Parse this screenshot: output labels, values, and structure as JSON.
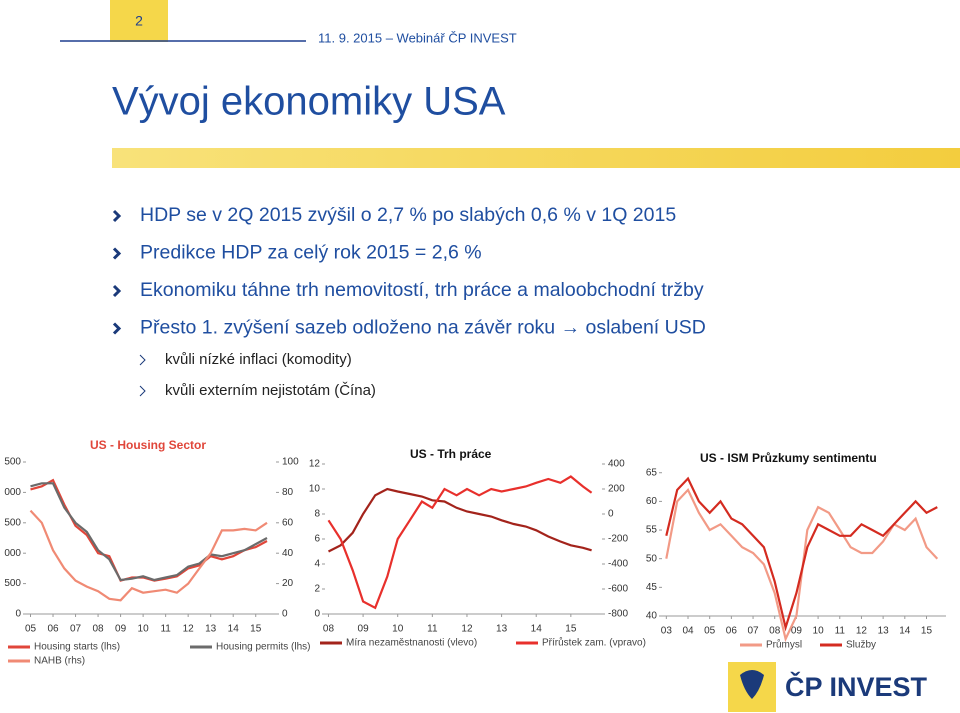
{
  "header": {
    "page_number": "2",
    "date": "11. 9. 2015 – Webinář ČP INVEST",
    "title": "Vývoj ekonomiky USA"
  },
  "bullets": [
    "HDP se v 2Q 2015 zvýšil o 2,7 % po slabých 0,6 % v 1Q 2015",
    "Predikce HDP za celý rok 2015 = 2,6 %",
    "Ekonomiku táhne trh nemovitostí, trh práce a maloobchodní tržby",
    "Přesto 1. zvýšení sazeb odloženo na závěr roku → oslabení USD"
  ],
  "sub_bullets": [
    "kvůli nízké inflaci (komodity)",
    "kvůli externím nejistotám (Čína)"
  ],
  "logo": "ČP INVEST",
  "chart_data": [
    {
      "type": "line",
      "title": "US - Housing Sector",
      "x": [
        2005,
        2005.5,
        2006,
        2006.5,
        2007,
        2007.5,
        2008,
        2008.5,
        2009,
        2009.5,
        2010,
        2010.5,
        2011,
        2011.5,
        2012,
        2012.5,
        2013,
        2013.5,
        2014,
        2014.5,
        2015,
        2015.5
      ],
      "xlim": [
        2004.8,
        2015.9
      ],
      "xticks": [
        {
          "value": 2005,
          "label": "05"
        },
        {
          "value": 2006,
          "label": "06"
        },
        {
          "value": 2007,
          "label": "07"
        },
        {
          "value": 2008,
          "label": "08"
        },
        {
          "value": 2009,
          "label": "09"
        },
        {
          "value": 2010,
          "label": "10"
        },
        {
          "value": 2011,
          "label": "11"
        },
        {
          "value": 2012,
          "label": "12"
        },
        {
          "value": 2013,
          "label": "13"
        },
        {
          "value": 2014,
          "label": "14"
        },
        {
          "value": 2015,
          "label": "15"
        }
      ],
      "ylim": [
        0,
        2500
      ],
      "yticks": [
        0,
        {
          "value": 500,
          "label": "500"
        },
        {
          "value": 1000,
          "label": "000"
        },
        {
          "value": 1500,
          "label": "500"
        },
        {
          "value": 2000,
          "label": "000"
        },
        {
          "value": 2500,
          "label": "500"
        }
      ],
      "y2lim": [
        0,
        100
      ],
      "y2ticks": [
        0,
        20,
        40,
        60,
        80,
        100
      ],
      "series": [
        {
          "name": "Housing starts (lhs)",
          "color": "#e0463a",
          "values": [
            2050,
            2100,
            2200,
            1800,
            1450,
            1300,
            1000,
            950,
            550,
            600,
            600,
            550,
            580,
            620,
            750,
            800,
            950,
            900,
            950,
            1050,
            1100,
            1200
          ]
        },
        {
          "name": "Housing permits (lhs)",
          "color": "#6b6b6b",
          "values": [
            2100,
            2150,
            2150,
            1750,
            1500,
            1350,
            1050,
            900,
            560,
            580,
            620,
            560,
            600,
            640,
            780,
            830,
            980,
            950,
            1000,
            1050,
            1150,
            1250
          ]
        },
        {
          "name": "NAHB (rhs)",
          "color": "#f08a74",
          "axis": "y2",
          "values": [
            68,
            60,
            42,
            30,
            22,
            18,
            15,
            10,
            9,
            17,
            14,
            15,
            16,
            14,
            20,
            30,
            40,
            55,
            55,
            56,
            55,
            60
          ]
        }
      ]
    },
    {
      "type": "line",
      "title": "US - Trh práce",
      "x": [
        2008,
        2008.35,
        2008.7,
        2009,
        2009.35,
        2009.7,
        2010,
        2010.35,
        2010.7,
        2011,
        2011.35,
        2011.7,
        2012,
        2012.35,
        2012.7,
        2013,
        2013.35,
        2013.7,
        2014,
        2014.35,
        2014.7,
        2015,
        2015.35,
        2015.6
      ],
      "xlim": [
        2007.9,
        2015.9
      ],
      "xticks": [
        {
          "value": 2008,
          "label": "08"
        },
        {
          "value": 2009,
          "label": "09"
        },
        {
          "value": 2010,
          "label": "10"
        },
        {
          "value": 2011,
          "label": "11"
        },
        {
          "value": 2012,
          "label": "12"
        },
        {
          "value": 2013,
          "label": "13"
        },
        {
          "value": 2014,
          "label": "14"
        },
        {
          "value": 2015,
          "label": "15"
        }
      ],
      "ylim": [
        0,
        12
      ],
      "yticks": [
        0,
        2,
        4,
        6,
        8,
        10,
        12
      ],
      "y2lim": [
        -800,
        400
      ],
      "y2ticks": [
        -800,
        -600,
        -400,
        -200,
        0,
        200,
        400
      ],
      "series": [
        {
          "name": "Míra nezaměstnanosti (vlevo)",
          "color": "#a3231b",
          "values": [
            5,
            5.5,
            6.5,
            8,
            9.5,
            10,
            9.8,
            9.6,
            9.4,
            9.1,
            9,
            8.5,
            8.2,
            8,
            7.8,
            7.5,
            7.2,
            7,
            6.7,
            6.2,
            5.8,
            5.5,
            5.3,
            5.1
          ]
        },
        {
          "name": "Přírůstek zam. (vpravo)",
          "color": "#e8302c",
          "axis": "y2",
          "values": [
            -50,
            -200,
            -450,
            -700,
            -750,
            -500,
            -200,
            -50,
            100,
            50,
            200,
            150,
            200,
            150,
            200,
            180,
            200,
            220,
            250,
            280,
            250,
            300,
            220,
            170
          ]
        }
      ]
    },
    {
      "type": "line",
      "title": "US - ISM Průzkumy sentimentu",
      "x": [
        2003,
        2003.5,
        2004,
        2004.5,
        2005,
        2005.5,
        2006,
        2006.5,
        2007,
        2007.5,
        2008,
        2008.5,
        2009,
        2009.5,
        2010,
        2010.5,
        2011,
        2011.5,
        2012,
        2012.5,
        2013,
        2013.5,
        2014,
        2014.5,
        2015,
        2015.5
      ],
      "xlim": [
        2002.8,
        2015.9
      ],
      "xticks": [
        {
          "value": 2003,
          "label": "03"
        },
        {
          "value": 2004,
          "label": "04"
        },
        {
          "value": 2005,
          "label": "05"
        },
        {
          "value": 2006,
          "label": "06"
        },
        {
          "value": 2007,
          "label": "07"
        },
        {
          "value": 2008,
          "label": "08"
        },
        {
          "value": 2009,
          "label": "09"
        },
        {
          "value": 2010,
          "label": "10"
        },
        {
          "value": 2011,
          "label": "11"
        },
        {
          "value": 2012,
          "label": "12"
        },
        {
          "value": 2013,
          "label": "13"
        },
        {
          "value": 2014,
          "label": "14"
        },
        {
          "value": 2015,
          "label": "15"
        }
      ],
      "ylim": [
        40,
        66
      ],
      "yticks": [
        40,
        45,
        50,
        55,
        60,
        65
      ],
      "series": [
        {
          "name": "Průmysl",
          "color": "#f29a86",
          "values": [
            50,
            60,
            62,
            58,
            55,
            56,
            54,
            52,
            51,
            49,
            44,
            36,
            40,
            55,
            59,
            58,
            55,
            52,
            51,
            51,
            53,
            56,
            55,
            57,
            52,
            50
          ]
        },
        {
          "name": "Služby",
          "color": "#d42b20",
          "values": [
            54,
            62,
            64,
            60,
            58,
            60,
            57,
            56,
            54,
            52,
            46,
            38,
            44,
            52,
            56,
            55,
            54,
            54,
            56,
            55,
            54,
            56,
            58,
            60,
            58,
            59
          ]
        }
      ]
    }
  ]
}
